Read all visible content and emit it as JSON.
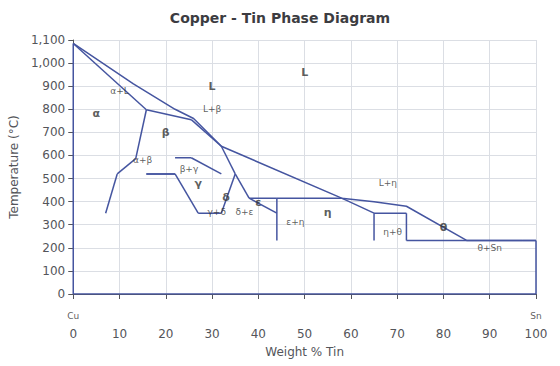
{
  "chart_data": {
    "type": "line",
    "title": "Copper - Tin Phase Diagram",
    "xlabel": "Weight % Tin",
    "ylabel": "Temperature (°C)",
    "color": "#4555a0",
    "grid": true,
    "xlim": [
      0,
      100
    ],
    "ylim": [
      0,
      1100
    ],
    "xticks": [
      0,
      10,
      20,
      30,
      40,
      50,
      60,
      70,
      80,
      90,
      100
    ],
    "yticks": [
      0,
      100,
      200,
      300,
      400,
      500,
      600,
      700,
      800,
      900,
      1000,
      1100
    ],
    "series": [
      {
        "x": [
          0,
          13,
          22,
          26,
          32,
          58,
          65,
          72,
          85,
          100
        ],
        "values": [
          1085,
          910,
          800,
          760,
          640,
          415,
          400,
          380,
          232,
          232
        ]
      },
      {
        "x": [
          0,
          15.8
        ],
        "values": [
          1085,
          798
        ]
      },
      {
        "x": [
          15.8,
          13.5
        ],
        "values": [
          798,
          586
        ]
      },
      {
        "x": [
          13.5,
          9.5
        ],
        "values": [
          586,
          520
        ]
      },
      {
        "x": [
          9.5,
          7
        ],
        "values": [
          520,
          350
        ]
      },
      {
        "x": [
          15.8,
          25.5
        ],
        "values": [
          798,
          755
        ]
      },
      {
        "x": [
          25.5,
          32
        ],
        "values": [
          755,
          640
        ]
      },
      {
        "x": [
          22,
          25.5
        ],
        "values": [
          590,
          590
        ]
      },
      {
        "x": [
          22,
          15.8
        ],
        "values": [
          520,
          520
        ]
      },
      {
        "x": [
          15.8,
          22
        ],
        "values": [
          520,
          520
        ]
      },
      {
        "x": [
          22,
          27
        ],
        "values": [
          520,
          350
        ]
      },
      {
        "x": [
          25.5,
          32
        ],
        "values": [
          590,
          520
        ]
      },
      {
        "x": [
          27,
          32
        ],
        "values": [
          350,
          350
        ]
      },
      {
        "x": [
          32,
          35
        ],
        "values": [
          640,
          520
        ]
      },
      {
        "x": [
          35,
          32
        ],
        "values": [
          520,
          350
        ]
      },
      {
        "x": [
          35,
          38
        ],
        "values": [
          520,
          415
        ]
      },
      {
        "x": [
          38,
          44
        ],
        "values": [
          415,
          350
        ]
      },
      {
        "x": [
          38,
          44
        ],
        "values": [
          415,
          415
        ]
      },
      {
        "x": [
          44,
          44
        ],
        "values": [
          415,
          232
        ]
      },
      {
        "x": [
          44,
          58
        ],
        "values": [
          415,
          415
        ]
      },
      {
        "x": [
          58,
          65
        ],
        "values": [
          415,
          350
        ]
      },
      {
        "x": [
          65,
          65
        ],
        "values": [
          350,
          232
        ]
      },
      {
        "x": [
          65,
          72
        ],
        "values": [
          350,
          350
        ]
      },
      {
        "x": [
          72,
          72
        ],
        "values": [
          350,
          232
        ]
      },
      {
        "x": [
          72,
          97
        ],
        "values": [
          232,
          232
        ]
      },
      {
        "x": [
          97,
          100
        ],
        "values": [
          232,
          232
        ]
      },
      {
        "x": [
          0,
          0
        ],
        "values": [
          0,
          1085
        ]
      },
      {
        "x": [
          0,
          100
        ],
        "values": [
          0,
          0
        ]
      },
      {
        "x": [
          100,
          100
        ],
        "values": [
          0,
          232
        ]
      }
    ],
    "annotations": [
      {
        "text": "L",
        "x": 50,
        "y": 960
      },
      {
        "text": "L",
        "x": 30,
        "y": 900
      },
      {
        "text": "α",
        "x": 5,
        "y": 780
      },
      {
        "text": "β",
        "x": 20,
        "y": 700
      },
      {
        "text": "γ",
        "x": 27,
        "y": 480
      },
      {
        "text": "δ",
        "x": 33,
        "y": 420
      },
      {
        "text": "ε",
        "x": 40,
        "y": 395
      },
      {
        "text": "η",
        "x": 55,
        "y": 355
      },
      {
        "text": "θ",
        "x": 80,
        "y": 290
      },
      {
        "text": "α+L",
        "x": 10,
        "y": 880
      },
      {
        "text": "L+β",
        "x": 30,
        "y": 800
      },
      {
        "text": "L+η",
        "x": 68,
        "y": 480
      },
      {
        "text": "α+β",
        "x": 15,
        "y": 580
      },
      {
        "text": "β+γ",
        "x": 25,
        "y": 540
      },
      {
        "text": "γ+δ",
        "x": 31,
        "y": 355
      },
      {
        "text": "δ+ε",
        "x": 37,
        "y": 355
      },
      {
        "text": "ε+η",
        "x": 48,
        "y": 310
      },
      {
        "text": "η+θ",
        "x": 69,
        "y": 270
      },
      {
        "text": "θ+Sn",
        "x": 90,
        "y": 200
      },
      {
        "text": "Cu",
        "x": 0,
        "y": -95
      },
      {
        "text": "Sn",
        "x": 100,
        "y": -95
      }
    ]
  }
}
